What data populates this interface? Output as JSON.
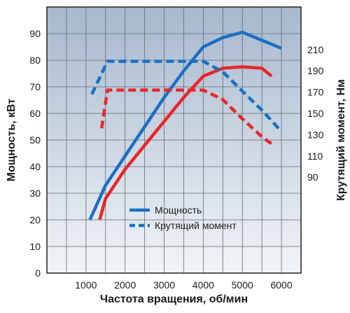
{
  "chart_data": {
    "type": "line",
    "title": "",
    "xlabel": "Частота вращения, об/мин",
    "ylabel": "Мощность, кВт",
    "y2label": "Крутящий момент, Нм",
    "xlim": [
      0,
      6500
    ],
    "ylim": [
      0,
      100
    ],
    "y2lim": [
      0,
      250
    ],
    "x_ticks": [
      1000,
      2000,
      3000,
      4000,
      5000,
      6000
    ],
    "y_ticks": [
      0,
      10,
      20,
      30,
      40,
      50,
      60,
      70,
      80,
      90
    ],
    "y2_ticks": [
      90,
      110,
      130,
      150,
      170,
      190,
      210
    ],
    "grid": true,
    "legend_position": "center-right",
    "legend": [
      {
        "label": "Мощность",
        "style": "solid"
      },
      {
        "label": "Крутящий момент",
        "style": "dashed"
      }
    ],
    "series": [
      {
        "axis": "power",
        "style": "solid",
        "color": "#1a6fc4",
        "x": [
          1100,
          1500,
          2000,
          2500,
          3000,
          3500,
          4000,
          4500,
          5000,
          5500,
          6000
        ],
        "y": [
          20,
          33,
          44,
          55,
          66,
          76,
          85,
          88.5,
          90.5,
          87.5,
          84.5
        ]
      },
      {
        "axis": "power",
        "style": "solid",
        "color": "#e8262b",
        "x": [
          1350,
          1500,
          2000,
          2500,
          3000,
          3500,
          4000,
          4500,
          5000,
          5500,
          5750
        ],
        "y": [
          20,
          28,
          39,
          48,
          57,
          66,
          74,
          77,
          77.5,
          77,
          74
        ]
      },
      {
        "axis": "torque",
        "style": "dashed",
        "color": "#1a6fc4",
        "x": [
          1150,
          1550,
          2000,
          3000,
          4000,
          4500,
          5000,
          5500,
          6000
        ],
        "y": [
          168,
          199,
          199,
          199,
          199,
          189,
          171,
          153,
          133
        ]
      },
      {
        "axis": "torque",
        "style": "dashed",
        "color": "#e8262b",
        "x": [
          1400,
          1550,
          2000,
          3000,
          4000,
          4500,
          5000,
          5500,
          5800
        ],
        "y": [
          136,
          172,
          172,
          172,
          172,
          163,
          145,
          128,
          120
        ]
      }
    ]
  },
  "colors": {
    "plot_background_top": "#a6b8cd",
    "plot_background_bottom": "#f1f4f7",
    "grid": "#606a74",
    "series_blue": "#1a6fc4",
    "series_red": "#e8262b"
  }
}
